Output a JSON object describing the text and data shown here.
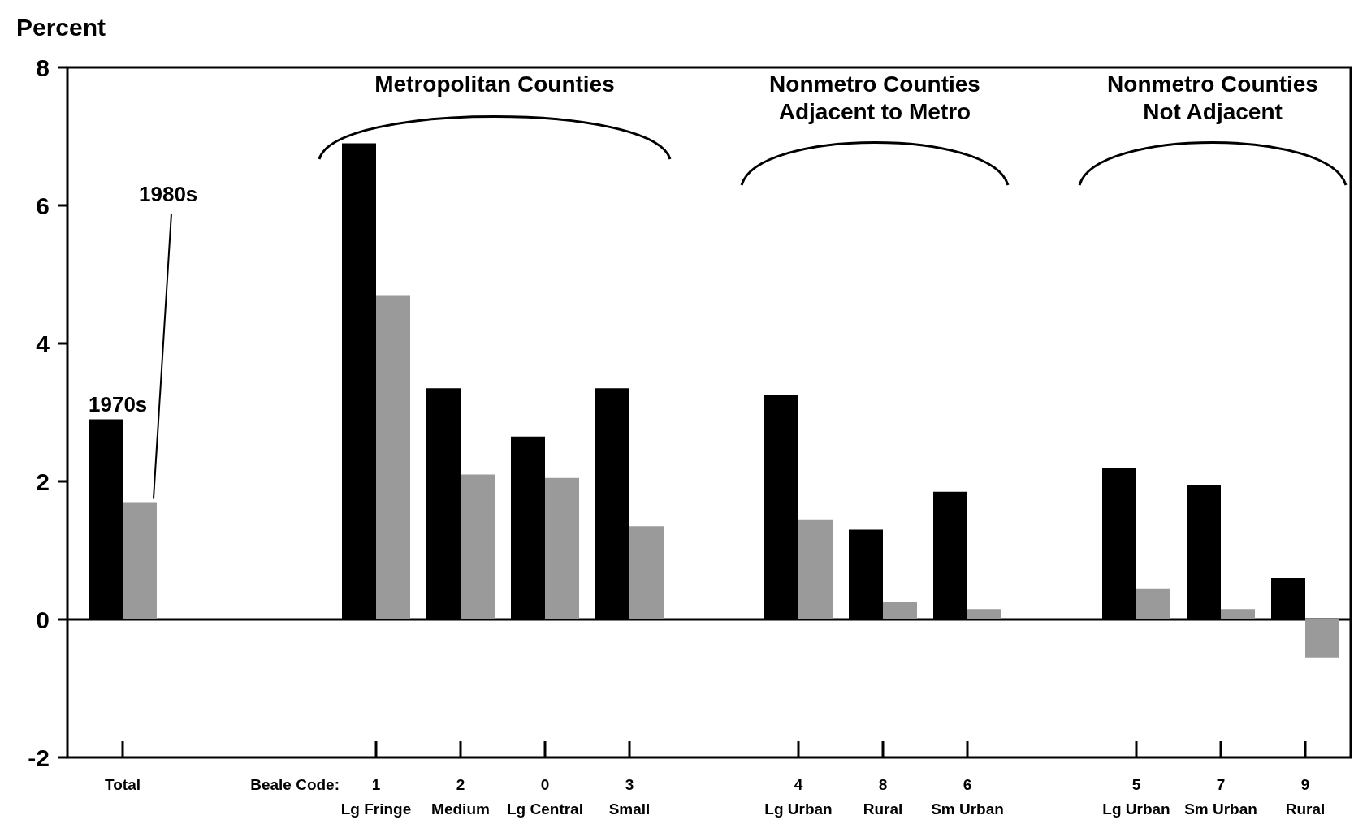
{
  "chart_data": {
    "type": "bar",
    "ylabel": "Percent",
    "categories": [
      "Total",
      null,
      null,
      "1\nLg Fringe",
      "2\nMedium",
      "0\nLg Central",
      "3\nSmall",
      null,
      "4\nLg Urban",
      "8\nRural",
      "6\nSm Urban",
      null,
      "5\nLg Urban",
      "7\nSm Urban",
      "9\nRural"
    ],
    "series": [
      {
        "name": "1970s",
        "color": "#000000",
        "values": [
          2.9,
          null,
          null,
          6.9,
          3.35,
          2.65,
          3.35,
          null,
          3.25,
          1.3,
          1.85,
          null,
          2.2,
          1.95,
          0.6
        ]
      },
      {
        "name": "1980s",
        "color": "#9a9a9a",
        "values": [
          1.7,
          null,
          null,
          4.7,
          2.1,
          2.05,
          1.35,
          null,
          1.45,
          0.25,
          0.15,
          null,
          0.45,
          0.15,
          -0.55
        ]
      }
    ],
    "ylim": [
      -2,
      8
    ],
    "yticks": [
      -2,
      0,
      2,
      4,
      6,
      8
    ],
    "grid": false,
    "legend": false,
    "ref_lines": [
      {
        "axis": "y",
        "value": 0,
        "color": "#000000"
      }
    ],
    "annotations": [
      "Beale Code:",
      "Metropolitan Counties",
      "Nonmetro Counties\nAdjacent to Metro",
      "Nonmetro Counties\nNot Adjacent"
    ]
  }
}
